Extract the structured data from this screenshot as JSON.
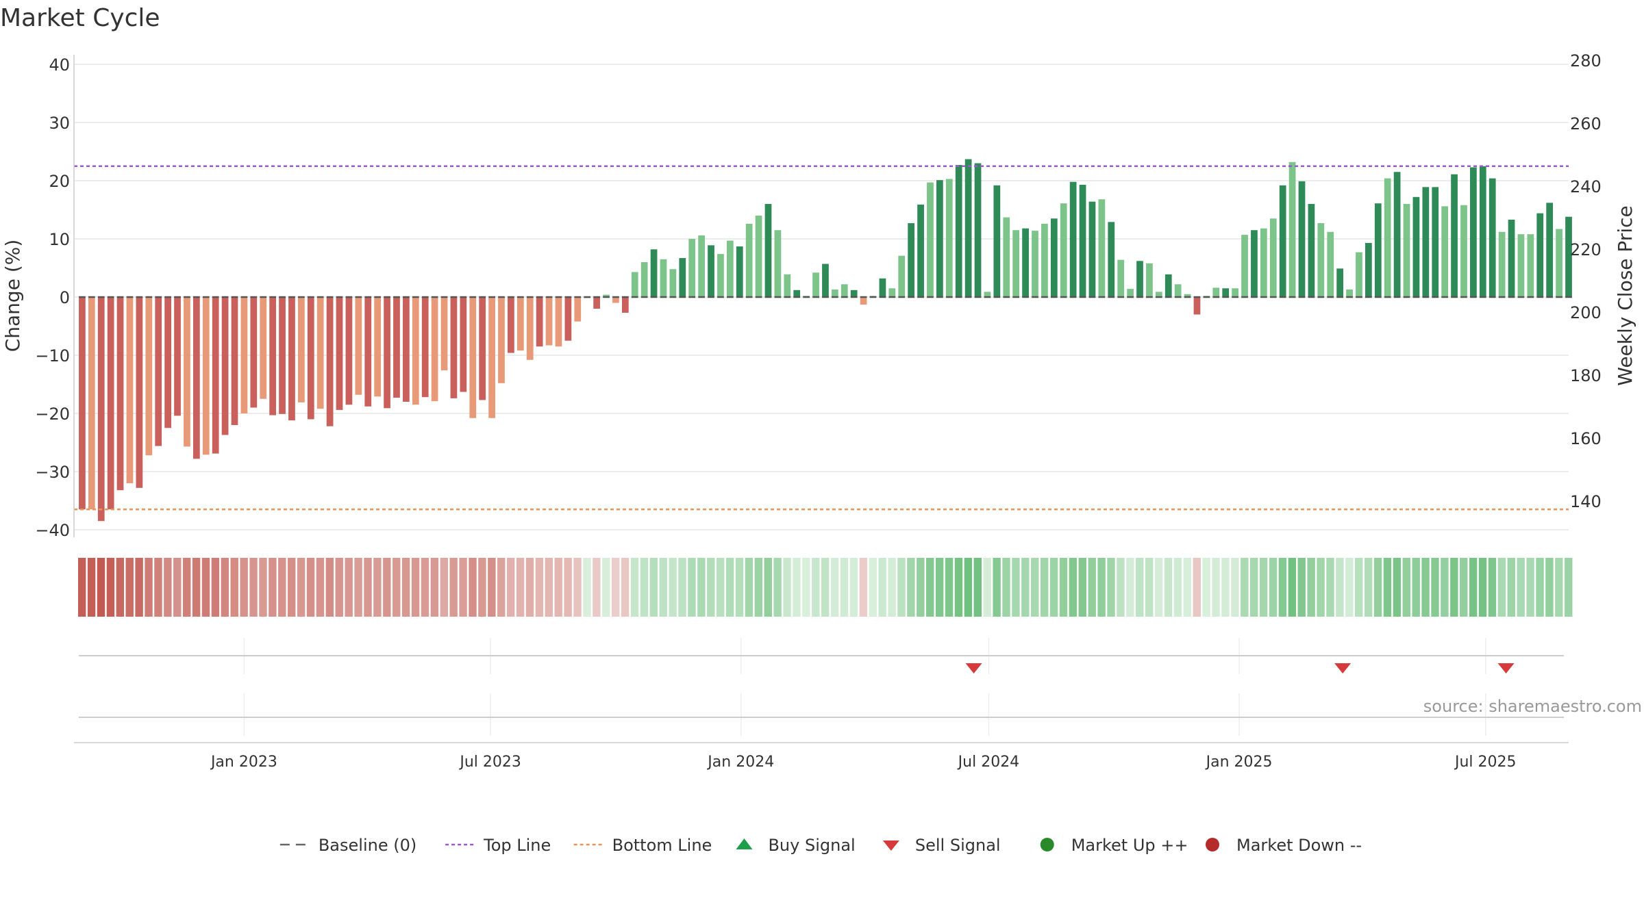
{
  "chart_data": {
    "type": "bar",
    "title": "Market Cycle",
    "ylabel": "Change (%)",
    "ylabel_right": "Weekly Close Price",
    "ylim": [
      -42,
      40
    ],
    "yticks": [
      40,
      30,
      20,
      10,
      0,
      -10,
      -20,
      -30,
      -40
    ],
    "y2ticks": [
      280,
      260,
      240,
      220,
      200,
      180,
      160,
      140
    ],
    "x_range": [
      "2022-08-29",
      "2025-08-31"
    ],
    "x_ticks": [
      {
        "date": "2023-01-01",
        "label": "Jan 2023"
      },
      {
        "date": "2023-07-01",
        "label": "Jul 2023"
      },
      {
        "date": "2024-01-01",
        "label": "Jan 2024"
      },
      {
        "date": "2024-07-01",
        "label": "Jul 2024"
      },
      {
        "date": "2025-01-01",
        "label": "Jan 2025"
      },
      {
        "date": "2025-07-01",
        "label": "Jul 2025"
      }
    ],
    "first_week": "2022-09-04",
    "week_step_days": 7,
    "top_line": 22.5,
    "bottom_line": -36.5,
    "baseline": 0,
    "grid": true,
    "legend_position": "bottom-center",
    "series": [
      {
        "name": "Change (%)",
        "values": [
          -36.5,
          -36.5,
          -38.5,
          -36.5,
          -33.2,
          -32,
          -32.8,
          -27.2,
          -25.6,
          -22.5,
          -20.4,
          -25.7,
          -27.8,
          -27.1,
          -26.9,
          -23.7,
          -22,
          -20,
          -19,
          -17.5,
          -20.3,
          -20.1,
          -21.2,
          -18.1,
          -21,
          -19.2,
          -22.2,
          -19.4,
          -18.5,
          -16.8,
          -18.8,
          -17.1,
          -19.1,
          -17.3,
          -18,
          -18.5,
          -17.2,
          -17.9,
          -12.6,
          -17.4,
          -16.3,
          -20.8,
          -17.7,
          -20.8,
          -14.8,
          -9.6,
          -9.2,
          -10.8,
          -8.5,
          -8.3,
          -8.5,
          -7.5,
          -4.2,
          0,
          -2,
          0.4,
          -1,
          -2.7,
          4.3,
          6,
          8.2,
          6.5,
          4.8,
          6.7,
          10,
          10.6,
          8.9,
          7.4,
          9.7,
          8.7,
          12.6,
          14,
          16,
          11.5,
          3.9,
          1.2,
          0.2,
          4.2,
          5.7,
          1.3,
          2.2,
          1.2,
          -1.3,
          0.2,
          3.2,
          1.5,
          7.1,
          12.7,
          15.9,
          19.7,
          20.1,
          20.3,
          22.7,
          23.7,
          23,
          0.9,
          19.2,
          13.7,
          11.5,
          11.8,
          11.4,
          12.6,
          13.5,
          16.1,
          19.8,
          19.3,
          16.4,
          16.8,
          12.9,
          6.4,
          1.4,
          6.2,
          5.8,
          0.9,
          3.9,
          2.2,
          0.5,
          -3,
          0.2,
          1.6,
          1.5,
          1.5,
          10.7,
          11.5,
          11.8,
          13.5,
          19.2,
          23.2,
          19.9,
          16,
          12.7,
          11.2,
          4.9,
          1.3,
          7.7,
          9.3,
          16.1,
          20.4,
          21.5,
          16,
          17.2,
          18.9,
          18.9,
          15.6,
          21.1,
          15.8,
          22.3,
          22.5,
          20.4,
          11.2,
          13.3,
          10.8,
          10.8,
          14.4,
          16.2,
          11.7,
          13.8
        ]
      }
    ],
    "sell_signal_dates": [
      "2024-06-20",
      "2025-03-18",
      "2025-07-16"
    ],
    "buy_signal_dates": [],
    "source_text": "source: sharemaestro.com",
    "legend": [
      {
        "key": "baseline",
        "label": "Baseline (0)",
        "color": "#666666"
      },
      {
        "key": "top",
        "label": "Top Line",
        "color": "#9b59d0"
      },
      {
        "key": "bottom",
        "label": "Bottom Line",
        "color": "#e8955a"
      },
      {
        "key": "buy",
        "label": "Buy Signal",
        "color": "#1e9e4a"
      },
      {
        "key": "sell",
        "label": "Sell Signal",
        "color": "#d63a3a"
      },
      {
        "key": "up",
        "label": "Market Up ++",
        "color": "#2a8a2a"
      },
      {
        "key": "down",
        "label": "Market Down --",
        "color": "#b52a2a"
      }
    ],
    "colors": {
      "bar_neg_dark": "#c9605b",
      "bar_neg_light": "#e89a78",
      "bar_pos_dark": "#2e8a57",
      "bar_pos_light": "#7cc48a"
    }
  }
}
